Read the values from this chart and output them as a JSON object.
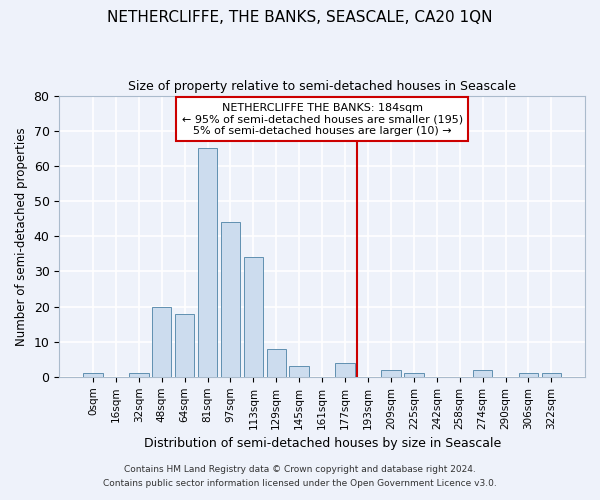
{
  "title": "NETHERCLIFFE, THE BANKS, SEASCALE, CA20 1QN",
  "subtitle": "Size of property relative to semi-detached houses in Seascale",
  "xlabel": "Distribution of semi-detached houses by size in Seascale",
  "ylabel": "Number of semi-detached properties",
  "bar_color": "#ccdcee",
  "bar_edge_color": "#6090b0",
  "background_color": "#eef2fa",
  "grid_color": "#ffffff",
  "categories": [
    "0sqm",
    "16sqm",
    "32sqm",
    "48sqm",
    "64sqm",
    "81sqm",
    "97sqm",
    "113sqm",
    "129sqm",
    "145sqm",
    "161sqm",
    "177sqm",
    "193sqm",
    "209sqm",
    "225sqm",
    "242sqm",
    "258sqm",
    "274sqm",
    "290sqm",
    "306sqm",
    "322sqm"
  ],
  "values": [
    1,
    0,
    1,
    20,
    18,
    65,
    44,
    34,
    8,
    3,
    0,
    4,
    0,
    2,
    1,
    0,
    0,
    2,
    0,
    1,
    1
  ],
  "ylim": [
    0,
    80
  ],
  "yticks": [
    0,
    10,
    20,
    30,
    40,
    50,
    60,
    70,
    80
  ],
  "red_line_x": 11.5,
  "annotation_title": "NETHERCLIFFE THE BANKS: 184sqm",
  "annotation_line1": "← 95% of semi-detached houses are smaller (195)",
  "annotation_line2": "5% of semi-detached houses are larger (10) →",
  "annotation_box_color": "#ffffff",
  "annotation_border_color": "#cc0000",
  "red_line_color": "#cc0000",
  "footer1": "Contains HM Land Registry data © Crown copyright and database right 2024.",
  "footer2": "Contains public sector information licensed under the Open Government Licence v3.0."
}
